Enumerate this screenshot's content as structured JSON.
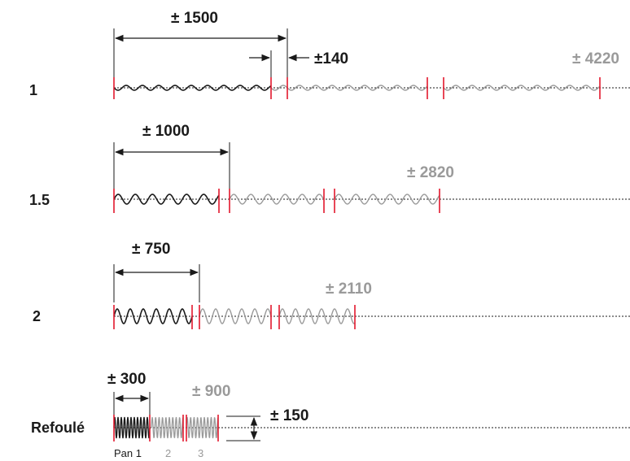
{
  "colors": {
    "active_wave": "#1a1a1a",
    "inactive_wave": "#9a9a9a",
    "pan_marker": "#e3182d",
    "guide_line": "#1a1a1a"
  },
  "rows": [
    {
      "label": "1",
      "first_panel": "± 1500",
      "total": "± 4220",
      "gap": "±140"
    },
    {
      "label": "1.5",
      "first_panel": "± 1000",
      "total": "± 2820"
    },
    {
      "label": "2",
      "first_panel": "± 750",
      "total": "± 2110"
    },
    {
      "label": "Refoulé",
      "first_panel": "± 300",
      "total": "± 900",
      "height": "± 150"
    }
  ],
  "pan_labels": [
    "Pan 1",
    "2",
    "3"
  ]
}
